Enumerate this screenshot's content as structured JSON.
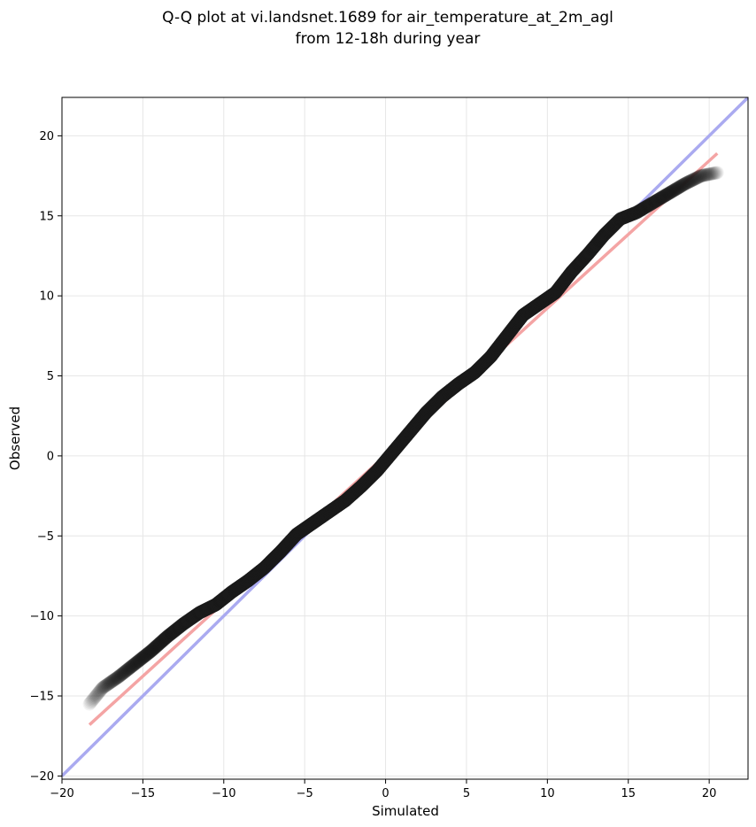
{
  "chart_data": {
    "type": "scatter",
    "title_lines": [
      "Q-Q plot at vi.landsnet.1689 for air_temperature_at_2m_agl",
      "from 12-18h during year"
    ],
    "xlabel": "Simulated",
    "ylabel": "Observed",
    "xlim": [
      -20,
      22.4
    ],
    "ylim": [
      -20.2,
      22.4
    ],
    "xticks": [
      -20,
      -15,
      -10,
      -5,
      0,
      5,
      10,
      15,
      20
    ],
    "yticks": [
      -20,
      -15,
      -10,
      -5,
      0,
      5,
      10,
      15,
      20
    ],
    "tick_labels_x": [
      "−20",
      "−15",
      "−10",
      "−5",
      "0",
      "5",
      "10",
      "15",
      "20"
    ],
    "tick_labels_y": [
      "−20",
      "−15",
      "−10",
      "−5",
      "0",
      "5",
      "10",
      "15",
      "20"
    ],
    "grid": true,
    "reference_lines": [
      {
        "kind": "identity",
        "color": "#aaaaf0",
        "x": [
          -20,
          22.4
        ],
        "y": [
          -20,
          22.4
        ]
      },
      {
        "kind": "fit",
        "color": "#f4a4a4",
        "x": [
          -18.3,
          20.5
        ],
        "y": [
          -16.8,
          18.9
        ]
      }
    ],
    "quantile_curve": {
      "x": [
        -18.3,
        -17.5,
        -16.5,
        -15.5,
        -14.5,
        -13.5,
        -12.5,
        -11.5,
        -10.5,
        -9.5,
        -8.5,
        -7.5,
        -6.5,
        -5.5,
        -4.5,
        -3.5,
        -2.5,
        -1.5,
        -0.5,
        0.5,
        1.5,
        2.5,
        3.5,
        4.5,
        5.5,
        6.5,
        7.5,
        8.5,
        9.5,
        10.5,
        11.5,
        12.5,
        13.5,
        14.5,
        15.5,
        16.5,
        17.5,
        18.5,
        19.5,
        20.5
      ],
      "y": [
        -15.5,
        -14.5,
        -13.8,
        -13.0,
        -12.2,
        -11.3,
        -10.5,
        -9.8,
        -9.3,
        -8.5,
        -7.8,
        -7.0,
        -6.0,
        -4.9,
        -4.2,
        -3.5,
        -2.8,
        -1.9,
        -0.9,
        0.3,
        1.5,
        2.7,
        3.7,
        4.5,
        5.2,
        6.2,
        7.5,
        8.8,
        9.5,
        10.2,
        11.5,
        12.6,
        13.8,
        14.8,
        15.2,
        15.8,
        16.4,
        17.0,
        17.5,
        17.7
      ]
    },
    "colors": {
      "points": "#1a1a1a",
      "axes": "#000000",
      "grid": "#e6e6e6"
    }
  }
}
